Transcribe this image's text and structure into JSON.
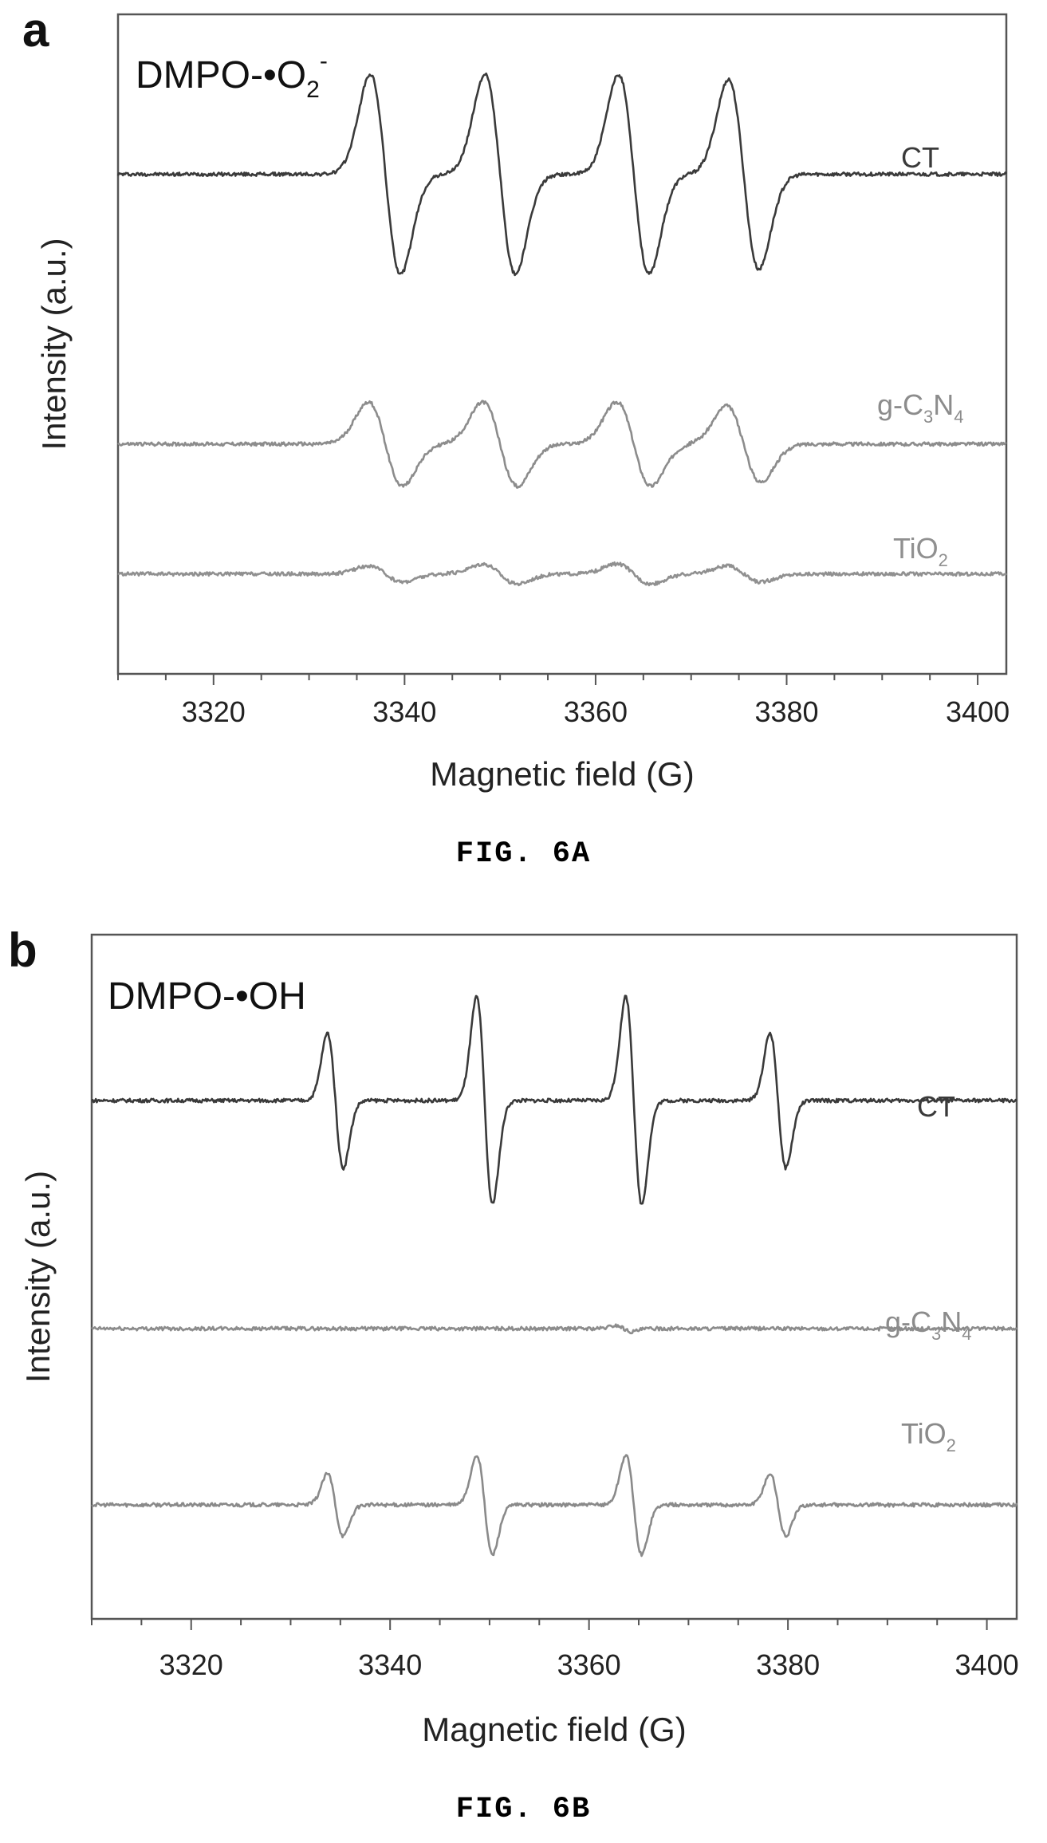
{
  "figures": [
    {
      "caption": "FIG. 6A",
      "panel_letter": "a",
      "inset_label": {
        "text": "DMPO-•O",
        "sub": "2",
        "sup": "-"
      }
    },
    {
      "caption": "FIG. 6B",
      "panel_letter": "b",
      "inset_label": {
        "text": "DMPO-•OH",
        "sub": "",
        "sup": ""
      }
    }
  ],
  "chart_data": [
    {
      "type": "line",
      "title": "",
      "xlabel": "Magnetic field (G)",
      "ylabel": "Intensity (a.u.)",
      "xlim": [
        3310,
        3403
      ],
      "xticks": [
        3320,
        3340,
        3360,
        3380,
        3400
      ],
      "yticks": [],
      "grid": false,
      "legend": "none",
      "series": [
        {
          "name": "CT",
          "label": {
            "base": "CT",
            "parts": []
          },
          "color": "#3a3a3a",
          "offset": 5.0,
          "peaks": [
            {
              "center": 3338.0,
              "amplitude": 1.0
            },
            {
              "center": 3350.0,
              "amplitude": 1.0
            },
            {
              "center": 3364.0,
              "amplitude": 1.0
            },
            {
              "center": 3375.5,
              "amplitude": 0.95
            }
          ],
          "linewidth_G": 1.6
        },
        {
          "name": "g-C3N4",
          "label": {
            "base": "g-C",
            "parts": [
              {
                "sub": "3"
              },
              {
                "text": "N"
              },
              {
                "sub": "4"
              }
            ]
          },
          "color": "#8c8c8c",
          "offset": 2.3,
          "peaks": [
            {
              "center": 3338.0,
              "amplitude": 0.42
            },
            {
              "center": 3350.0,
              "amplitude": 0.42
            },
            {
              "center": 3364.0,
              "amplitude": 0.42
            },
            {
              "center": 3375.5,
              "amplitude": 0.38
            }
          ],
          "linewidth_G": 1.8
        },
        {
          "name": "TiO2",
          "label": {
            "base": "TiO",
            "parts": [
              {
                "sub": "2"
              }
            ]
          },
          "color": "#909090",
          "offset": 1.0,
          "peaks": [
            {
              "center": 3338.0,
              "amplitude": 0.08
            },
            {
              "center": 3350.0,
              "amplitude": 0.1
            },
            {
              "center": 3364.0,
              "amplitude": 0.1
            },
            {
              "center": 3375.5,
              "amplitude": 0.08
            }
          ],
          "linewidth_G": 1.8
        }
      ]
    },
    {
      "type": "line",
      "title": "",
      "xlabel": "Magnetic field (G)",
      "ylabel": "Intensity (a.u.)",
      "xlim": [
        3310,
        3403
      ],
      "xticks": [
        3320,
        3340,
        3360,
        3380,
        3400
      ],
      "yticks": [],
      "grid": false,
      "legend": "none",
      "series": [
        {
          "name": "CT",
          "label": {
            "base": "CT",
            "parts": []
          },
          "color": "#3a3a3a",
          "offset": 5.0,
          "peaks": [
            {
              "center": 3334.5,
              "amplitude": 0.65
            },
            {
              "center": 3349.5,
              "amplitude": 1.0
            },
            {
              "center": 3364.5,
              "amplitude": 1.0
            },
            {
              "center": 3379.0,
              "amplitude": 0.65
            }
          ],
          "linewidth_G": 0.8
        },
        {
          "name": "g-C3N4",
          "label": {
            "base": "g-C",
            "parts": [
              {
                "sub": "3"
              },
              {
                "text": "N"
              },
              {
                "sub": "4"
              }
            ]
          },
          "color": "#8c8c8c",
          "offset": 2.8,
          "peaks": [
            {
              "center": 3363.5,
              "amplitude": 0.03
            }
          ],
          "linewidth_G": 0.8
        },
        {
          "name": "TiO2",
          "label": {
            "base": "TiO",
            "parts": [
              {
                "sub": "2"
              }
            ]
          },
          "color": "#8a8a8a",
          "offset": 1.1,
          "peaks": [
            {
              "center": 3334.5,
              "amplitude": 0.3
            },
            {
              "center": 3349.5,
              "amplitude": 0.48
            },
            {
              "center": 3364.5,
              "amplitude": 0.48
            },
            {
              "center": 3379.0,
              "amplitude": 0.3
            }
          ],
          "linewidth_G": 0.8
        }
      ]
    }
  ]
}
